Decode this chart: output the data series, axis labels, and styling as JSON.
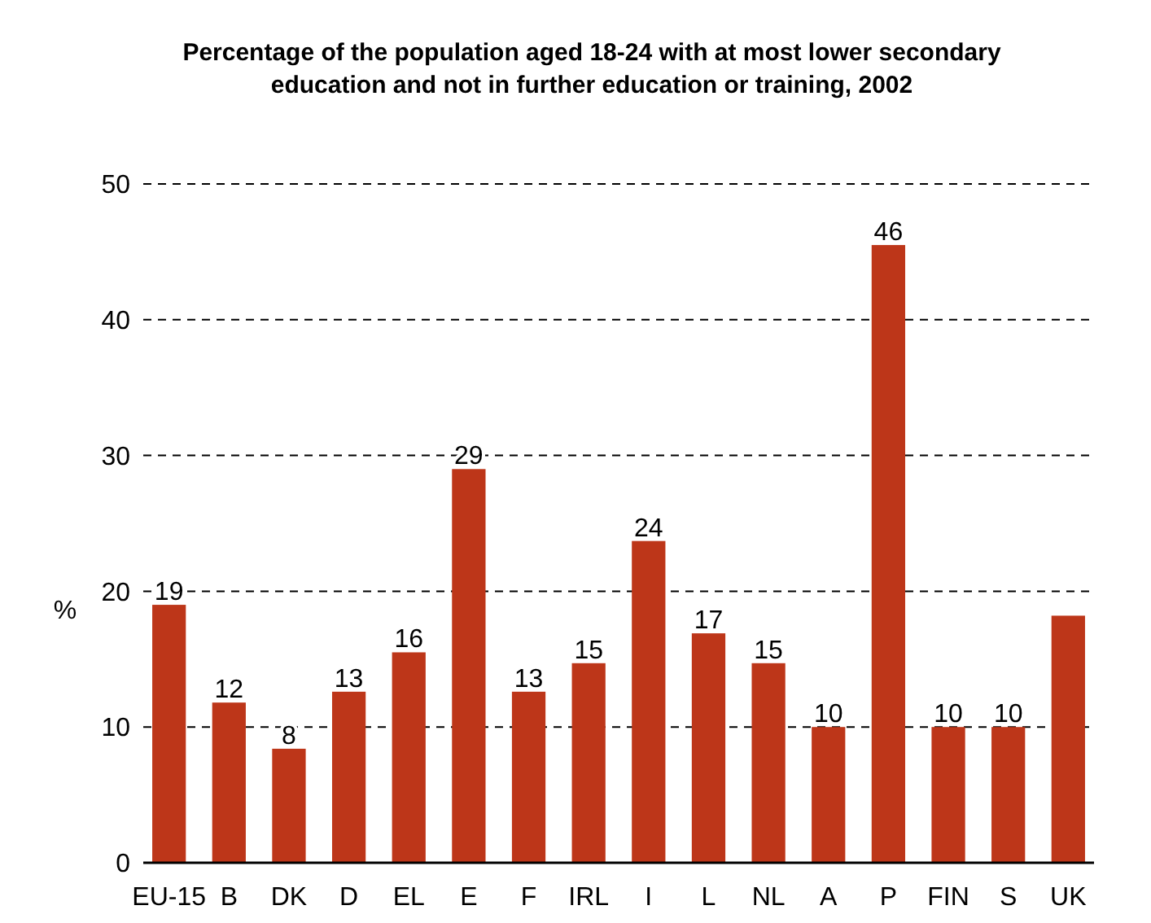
{
  "chart_data": {
    "type": "bar",
    "title": "Percentage of the population aged 18-24 with at most lower secondary education and not in further education or training, 2002",
    "ylabel": "%",
    "categories": [
      "EU-15",
      "B",
      "DK",
      "D",
      "EL",
      "E",
      "F",
      "IRL",
      "I",
      "L",
      "NL",
      "A",
      "P",
      "FIN",
      "S",
      "UK"
    ],
    "values": [
      19.0,
      11.8,
      8.4,
      12.6,
      15.5,
      29.0,
      12.6,
      14.7,
      23.7,
      16.9,
      14.7,
      10.0,
      45.5,
      10.0,
      10.0,
      18.2
    ],
    "value_labels": [
      "19",
      "12",
      "8",
      "13",
      "16",
      "29",
      "13",
      "15",
      "24",
      "17",
      "15",
      "10",
      "46",
      "10",
      "10",
      null
    ],
    "color": "#bd3619",
    "ylim": [
      0,
      50
    ],
    "yticks": [
      0,
      10,
      20,
      30,
      40,
      50
    ],
    "grid": "y"
  }
}
